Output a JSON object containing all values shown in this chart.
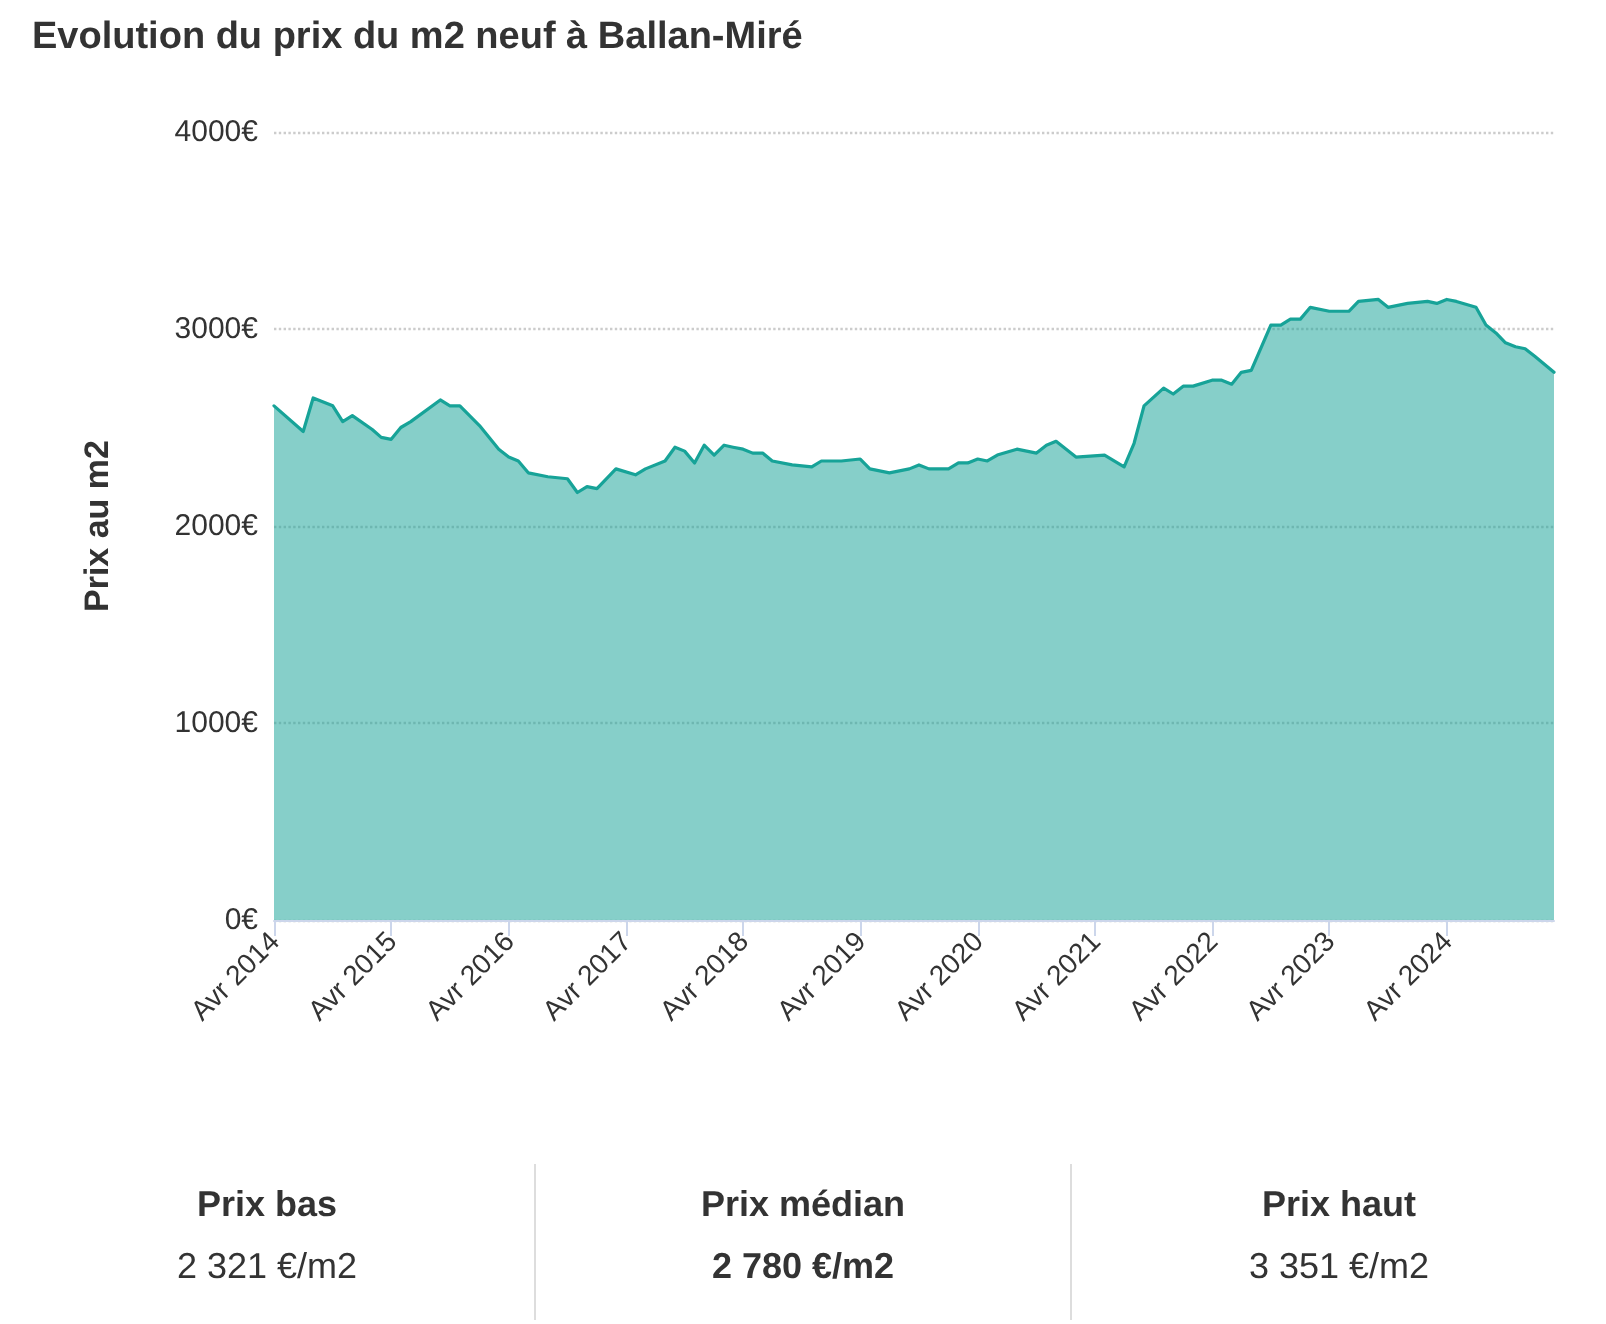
{
  "chart_data": {
    "type": "area",
    "title": "Evolution du prix du m2 neuf à Ballan-Miré",
    "ylabel": "Prix au m2",
    "x": [
      "2014-04",
      "2014-07",
      "2014-08",
      "2014-10",
      "2014-11",
      "2014-12",
      "2015-02",
      "2015-03",
      "2015-04",
      "2015-05",
      "2015-06",
      "2015-09",
      "2015-10",
      "2015-11",
      "2016-01",
      "2016-03",
      "2016-04",
      "2016-05",
      "2016-06",
      "2016-08",
      "2016-10",
      "2016-11",
      "2016-12",
      "2017-01",
      "2017-03",
      "2017-05",
      "2017-06",
      "2017-08",
      "2017-09",
      "2017-10",
      "2017-11",
      "2017-12",
      "2018-01",
      "2018-02",
      "2018-03",
      "2018-04",
      "2018-05",
      "2018-06",
      "2018-07",
      "2018-09",
      "2018-11",
      "2018-12",
      "2019-02",
      "2019-04",
      "2019-05",
      "2019-07",
      "2019-09",
      "2019-10",
      "2019-11",
      "2020-01",
      "2020-02",
      "2020-03",
      "2020-04",
      "2020-05",
      "2020-06",
      "2020-08",
      "2020-10",
      "2020-11",
      "2020-12",
      "2021-02",
      "2021-05",
      "2021-07",
      "2021-08",
      "2021-09",
      "2021-11",
      "2021-12",
      "2022-01",
      "2022-02",
      "2022-04",
      "2022-05",
      "2022-06",
      "2022-07",
      "2022-08",
      "2022-10",
      "2022-11",
      "2022-12",
      "2023-01",
      "2023-02",
      "2023-04",
      "2023-06",
      "2023-07",
      "2023-09",
      "2023-10",
      "2023-12",
      "2024-02",
      "2024-03",
      "2024-04",
      "2024-05",
      "2024-07",
      "2024-08",
      "2024-09",
      "2024-10",
      "2024-11",
      "2024-12",
      "2025-01",
      "2025-03"
    ],
    "series": [
      {
        "color": "#17a398",
        "values": [
          2610,
          2480,
          2650,
          2610,
          2530,
          2560,
          2490,
          2450,
          2440,
          2500,
          2530,
          2640,
          2610,
          2610,
          2510,
          2390,
          2350,
          2330,
          2270,
          2250,
          2240,
          2170,
          2200,
          2190,
          2290,
          2260,
          2290,
          2330,
          2400,
          2380,
          2320,
          2410,
          2360,
          2410,
          2400,
          2390,
          2370,
          2370,
          2330,
          2310,
          2300,
          2330,
          2330,
          2340,
          2290,
          2270,
          2290,
          2310,
          2290,
          2290,
          2320,
          2320,
          2340,
          2330,
          2360,
          2390,
          2370,
          2410,
          2430,
          2350,
          2360,
          2300,
          2420,
          2610,
          2700,
          2670,
          2710,
          2710,
          2740,
          2740,
          2720,
          2780,
          2790,
          3020,
          3020,
          3050,
          3050,
          3110,
          3090,
          3090,
          3140,
          3150,
          3110,
          3130,
          3140,
          3130,
          3150,
          3140,
          3110,
          3020,
          2980,
          2930,
          2910,
          2900,
          2860,
          2780
        ]
      }
    ],
    "xlim": [
      "2014-04",
      "2025-03"
    ],
    "xticks": [
      {
        "value": "2014-04",
        "label": "Avr 2014"
      },
      {
        "value": "2015-04",
        "label": "Avr 2015"
      },
      {
        "value": "2016-04",
        "label": "Avr 2016"
      },
      {
        "value": "2017-04",
        "label": "Avr 2017"
      },
      {
        "value": "2018-04",
        "label": "Avr 2018"
      },
      {
        "value": "2019-04",
        "label": "Avr 2019"
      },
      {
        "value": "2020-04",
        "label": "Avr 2020"
      },
      {
        "value": "2021-04",
        "label": "Avr 2021"
      },
      {
        "value": "2022-04",
        "label": "Avr 2022"
      },
      {
        "value": "2023-04",
        "label": "Avr 2023"
      },
      {
        "value": "2024-04",
        "label": "Avr 2024"
      }
    ],
    "ylim": [
      0,
      4000
    ],
    "yticks": [
      {
        "value": 0,
        "label": "0€"
      },
      {
        "value": 1000,
        "label": "1000€"
      },
      {
        "value": 2000,
        "label": "2000€"
      },
      {
        "value": 3000,
        "label": "3000€"
      },
      {
        "value": 4000,
        "label": "4000€"
      }
    ],
    "grid": "y",
    "marker": "none",
    "line_style": "solid",
    "annotations": [
      "Prix bas",
      "2 321 €/m2",
      "Prix médian",
      "2 780 €/m2",
      "Prix haut",
      "3 351 €/m2"
    ]
  }
}
